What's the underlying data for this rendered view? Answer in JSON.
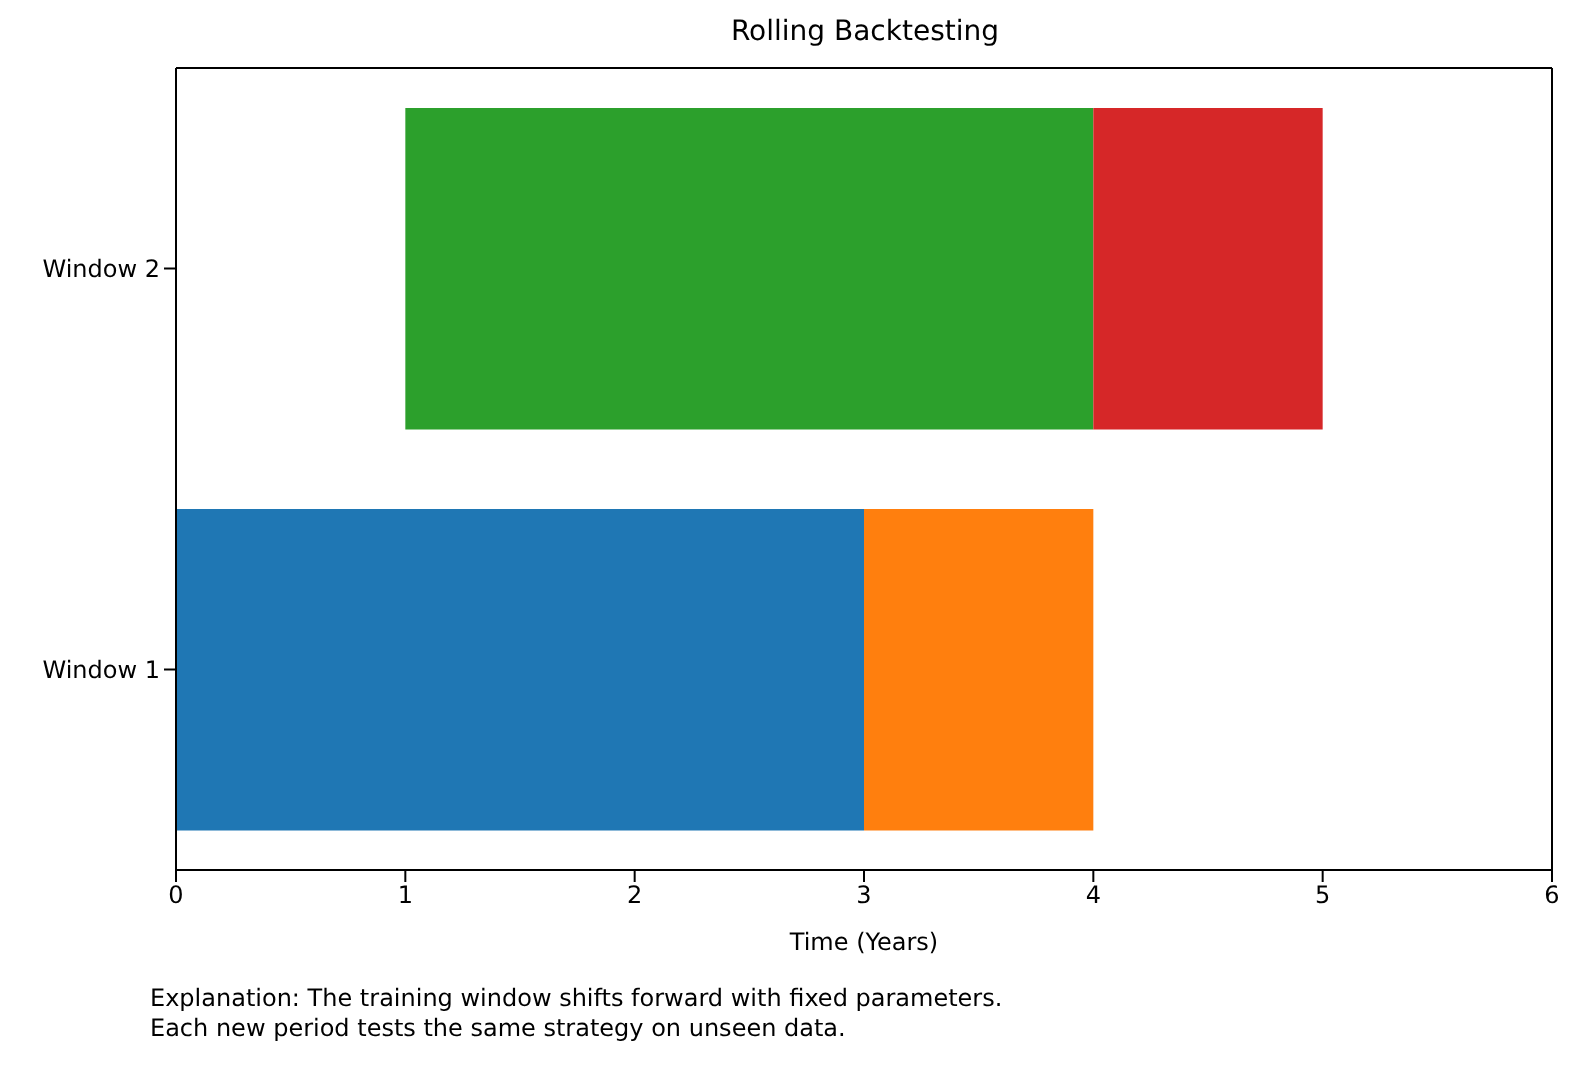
{
  "chart_data": {
    "type": "bar",
    "orientation": "horizontal",
    "title": "Rolling Backtesting",
    "xlabel": "Time (Years)",
    "categories": [
      "Window 2",
      "Window 1"
    ],
    "series": [
      {
        "base": [
          1,
          0
        ],
        "values": [
          3,
          3
        ],
        "colors": [
          "#2ca02c",
          "#1f77b4"
        ]
      },
      {
        "base": [
          4,
          3
        ],
        "values": [
          1,
          1
        ],
        "colors": [
          "#d62728",
          "#ff7f0e"
        ]
      }
    ],
    "xlim": [
      0,
      6
    ],
    "xticks": [
      0,
      1,
      2,
      3,
      4,
      5,
      6
    ],
    "grid": false,
    "legend": false,
    "annotations": [
      "Explanation: The training window shifts forward with fixed parameters.\nEach new period tests the same strategy on unseen data."
    ]
  }
}
